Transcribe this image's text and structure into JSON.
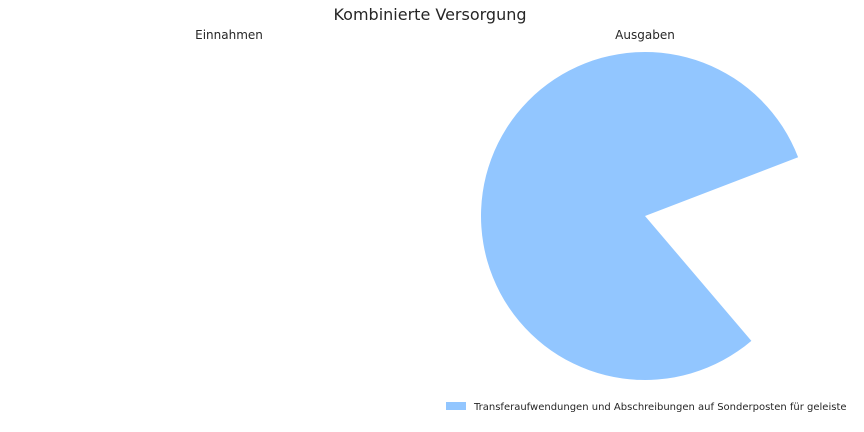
{
  "chart_data": {
    "type": "pie",
    "title": "Kombinierte Versorgung",
    "charts": [
      {
        "subtitle": "Einnahmen",
        "slices": []
      },
      {
        "subtitle": "Ausgaben",
        "slices": [
          {
            "label": "Transferaufwendungen und Abschreibungen auf Sonderposten für geleiste",
            "value_fraction": 0.804,
            "color": "#92c6ff"
          }
        ]
      }
    ],
    "legend": {
      "placement": "bottom-right",
      "entries": [
        {
          "label": "Transferaufwendungen und Abschreibungen auf Sonderposten für geleiste",
          "color": "#92c6ff"
        }
      ]
    }
  }
}
